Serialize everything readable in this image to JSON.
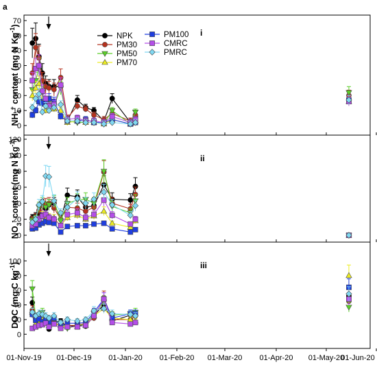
{
  "figure": {
    "label": "a",
    "x_ticks": [
      "01-Nov-19",
      "01-Dec-19",
      "01-Jan-20",
      "01-Feb-20",
      "01-Mar-20",
      "01-Apr-20",
      "01-May-20",
      "01-Jun-20"
    ]
  },
  "legend": [
    {
      "name": "NPK",
      "color": "#000000",
      "marker": "circle"
    },
    {
      "name": "PM30",
      "color": "#b5321e",
      "marker": "circle"
    },
    {
      "name": "PM50",
      "color": "#5ccf2a",
      "marker": "triangle-down"
    },
    {
      "name": "PM70",
      "color": "#ecec22",
      "marker": "triangle-up"
    },
    {
      "name": "PM100",
      "color": "#1f3ee0",
      "marker": "square"
    },
    {
      "name": "CMRC",
      "color": "#b44ee8",
      "marker": "square"
    },
    {
      "name": "PMRC",
      "color": "#7fd8f2",
      "marker": "diamond"
    }
  ],
  "chart_data": [
    {
      "type": "scatter",
      "panel": "i",
      "ylabel": "NH4+ content (mg N Kg-1)",
      "ylim": [
        0,
        70
      ],
      "yticks": [
        0,
        10,
        20,
        30,
        40,
        50,
        60,
        70
      ],
      "x": [
        "2019-11-04",
        "2019-11-06",
        "2019-11-08",
        "2019-11-10",
        "2019-11-12",
        "2019-11-14",
        "2019-11-16",
        "2019-11-19",
        "2019-11-23",
        "2019-11-27",
        "2019-12-03",
        "2019-12-08",
        "2019-12-13",
        "2019-12-19",
        "2019-12-24",
        "2020-01-04",
        "2020-01-07",
        "2020-05-15"
      ],
      "series": [
        {
          "name": "NPK",
          "values": [
            null,
            55,
            58,
            46,
            35,
            28,
            26,
            26,
            26,
            3,
            17,
            12,
            10,
            3,
            18,
            2,
            6,
            17
          ]
        },
        {
          "name": "PM30",
          "values": [
            null,
            35,
            52,
            45,
            30,
            26,
            25,
            24,
            32,
            5,
            13,
            11,
            7,
            4,
            8,
            3,
            7,
            20
          ]
        },
        {
          "name": "PM50",
          "values": [
            null,
            24,
            30,
            38,
            22,
            12,
            16,
            13,
            25,
            3,
            2,
            2,
            2,
            1,
            10,
            1,
            9,
            22
          ]
        },
        {
          "name": "PM70",
          "values": [
            null,
            20,
            25,
            28,
            15,
            10,
            14,
            11,
            10,
            2,
            3,
            2,
            2,
            1,
            4,
            1,
            3,
            16
          ]
        },
        {
          "name": "PM100",
          "values": [
            null,
            7,
            10,
            16,
            15,
            16,
            18,
            16,
            6,
            3,
            3,
            4,
            2,
            2,
            4,
            1,
            2,
            17
          ]
        },
        {
          "name": "CMRC",
          "values": [
            null,
            30,
            38,
            40,
            23,
            18,
            13,
            14,
            27,
            4,
            5,
            3,
            3,
            2,
            6,
            2,
            4,
            16
          ]
        },
        {
          "name": "PMRC",
          "values": [
            null,
            12,
            18,
            21,
            9,
            13,
            10,
            12,
            14,
            3,
            3,
            2,
            2,
            1,
            2,
            1,
            2,
            17
          ]
        }
      ]
    },
    {
      "type": "scatter",
      "panel": "ii",
      "ylabel": "NO3- content (mg N Kg-1)",
      "ylim": [
        0,
        120
      ],
      "yticks": [
        0,
        20,
        40,
        60,
        80,
        100,
        120
      ],
      "x": [
        "2019-11-04",
        "2019-11-06",
        "2019-11-08",
        "2019-11-10",
        "2019-11-12",
        "2019-11-14",
        "2019-11-16",
        "2019-11-19",
        "2019-11-23",
        "2019-11-27",
        "2019-12-03",
        "2019-12-08",
        "2019-12-13",
        "2019-12-19",
        "2019-12-24",
        "2020-01-04",
        "2020-01-07",
        "2020-05-15"
      ],
      "series": [
        {
          "name": "NPK",
          "values": [
            null,
            22,
            24,
            28,
            38,
            33,
            38,
            40,
            20,
            50,
            48,
            35,
            37,
            63,
            45,
            44,
            61,
            0
          ]
        },
        {
          "name": "PM30",
          "values": [
            null,
            20,
            23,
            31,
            37,
            39,
            40,
            34,
            20,
            35,
            34,
            30,
            35,
            79,
            40,
            33,
            51,
            0
          ]
        },
        {
          "name": "PM50",
          "values": [
            null,
            18,
            21,
            35,
            40,
            35,
            38,
            42,
            18,
            40,
            44,
            45,
            40,
            80,
            36,
            28,
            43,
            0
          ]
        },
        {
          "name": "PM70",
          "values": [
            null,
            10,
            13,
            20,
            25,
            22,
            23,
            22,
            12,
            22,
            25,
            20,
            24,
            30,
            15,
            10,
            18,
            0
          ]
        },
        {
          "name": "PM100",
          "values": [
            null,
            8,
            9,
            13,
            15,
            17,
            16,
            15,
            4,
            11,
            12,
            12,
            14,
            15,
            8,
            4,
            7,
            0
          ]
        },
        {
          "name": "CMRC",
          "values": [
            null,
            12,
            14,
            20,
            24,
            26,
            22,
            20,
            12,
            26,
            28,
            22,
            26,
            44,
            25,
            14,
            20,
            0
          ]
        },
        {
          "name": "PMRC",
          "values": [
            null,
            16,
            20,
            38,
            42,
            74,
            73,
            43,
            28,
            35,
            46,
            40,
            45,
            54,
            38,
            25,
            37,
            0
          ]
        }
      ]
    },
    {
      "type": "scatter",
      "panel": "iii",
      "ylabel": "DOC (mg C kg-1)",
      "ylim": [
        -10,
        120
      ],
      "yticks": [
        0,
        20,
        40,
        60,
        80,
        100
      ],
      "x": [
        "2019-11-04",
        "2019-11-06",
        "2019-11-08",
        "2019-11-10",
        "2019-11-12",
        "2019-11-14",
        "2019-11-16",
        "2019-11-19",
        "2019-11-23",
        "2019-11-27",
        "2019-12-03",
        "2019-12-08",
        "2019-12-13",
        "2019-12-19",
        "2019-12-24",
        "2020-01-04",
        "2020-01-07",
        "2020-05-15"
      ],
      "series": [
        {
          "name": "NPK",
          "values": [
            null,
            43,
            21,
            20,
            16,
            17,
            7,
            16,
            18,
            10,
            12,
            11,
            25,
            41,
            18,
            26,
            26,
            52
          ]
        },
        {
          "name": "PM30",
          "values": [
            null,
            33,
            22,
            21,
            18,
            21,
            18,
            17,
            10,
            12,
            12,
            15,
            22,
            50,
            20,
            20,
            25,
            45
          ]
        },
        {
          "name": "PM50",
          "values": [
            null,
            62,
            24,
            25,
            30,
            20,
            18,
            20,
            15,
            8,
            12,
            13,
            28,
            44,
            26,
            28,
            30,
            37
          ]
        },
        {
          "name": "PM70",
          "values": [
            null,
            30,
            14,
            18,
            20,
            15,
            12,
            14,
            12,
            10,
            10,
            12,
            25,
            35,
            22,
            20,
            18,
            80
          ]
        },
        {
          "name": "PM100",
          "values": [
            null,
            27,
            19,
            21,
            17,
            19,
            17,
            22,
            11,
            15,
            15,
            16,
            30,
            48,
            22,
            28,
            28,
            64
          ]
        },
        {
          "name": "CMRC",
          "values": [
            null,
            8,
            10,
            12,
            13,
            15,
            10,
            14,
            8,
            10,
            10,
            12,
            25,
            48,
            16,
            14,
            16,
            48
          ]
        },
        {
          "name": "PMRC",
          "values": [
            null,
            30,
            25,
            28,
            27,
            25,
            22,
            25,
            16,
            20,
            18,
            20,
            32,
            35,
            28,
            27,
            25,
            55
          ]
        }
      ]
    }
  ]
}
